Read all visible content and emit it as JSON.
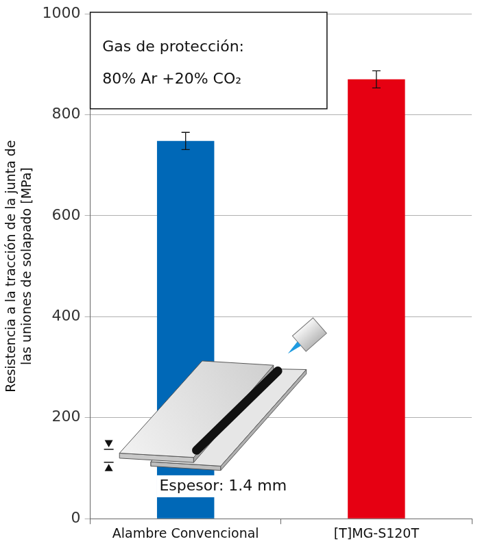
{
  "chart_data": {
    "type": "bar",
    "categories": [
      "Alambre Convencional",
      "[T]MG-S120T"
    ],
    "values": [
      748,
      870
    ],
    "errors": [
      17,
      17
    ],
    "colors": [
      "#0068b7",
      "#e60012"
    ],
    "ylabel": [
      "Resistencia a la tracción de la junta de",
      "las uniones de solapado [MPa]"
    ],
    "annotations": [
      [
        "Gas de protección:",
        "80% Ar +20% CO₂"
      ],
      [
        "Espesor: 1.4 mm"
      ]
    ],
    "ylim": [
      0,
      1000
    ],
    "yticks": [
      0,
      200,
      400,
      600,
      800,
      1000
    ],
    "grid": true
  }
}
